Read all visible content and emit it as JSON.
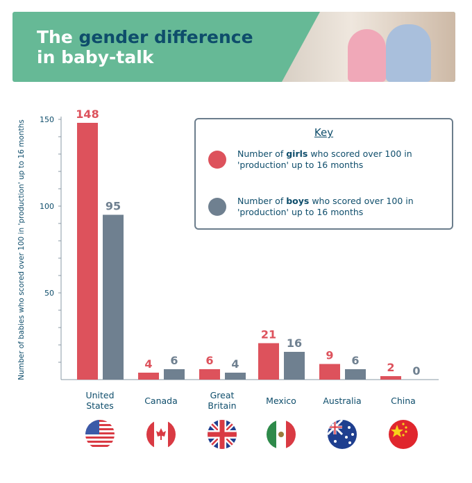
{
  "header": {
    "title_part1": "The ",
    "title_highlight": "gender difference",
    "title_line2": "in baby-talk"
  },
  "colors": {
    "girls": "#dd525c",
    "boys": "#6f8090",
    "banner": "#66b996",
    "navy": "#0e4d6b"
  },
  "key": {
    "title": "Key",
    "girls_pre": "Number of ",
    "girls_bold": "girls",
    "girls_post": " who scored over 100 in 'production' up to 16 months",
    "boys_pre": "Number of ",
    "boys_bold": "boys",
    "boys_post": " who scored over 100 in 'production' up to 16 months"
  },
  "chart_data": {
    "type": "bar",
    "title": "The gender difference in baby-talk",
    "ylabel": "Number of babies who scored over 100 in 'production' up to 16 months",
    "xlabel": "",
    "ylim": [
      0,
      150
    ],
    "yticks": [
      50,
      100,
      150
    ],
    "categories": [
      "United States",
      "Canada",
      "Great Britain",
      "Mexico",
      "Australia",
      "China"
    ],
    "category_lines": [
      [
        "United",
        "States"
      ],
      [
        "Canada"
      ],
      [
        "Great",
        "Britain"
      ],
      [
        "Mexico"
      ],
      [
        "Australia"
      ],
      [
        "China"
      ]
    ],
    "flags": [
      "us-flag-icon",
      "canada-flag-icon",
      "uk-flag-icon",
      "mexico-flag-icon",
      "australia-flag-icon",
      "china-flag-icon"
    ],
    "series": [
      {
        "name": "Girls",
        "values": [
          148,
          4,
          6,
          21,
          9,
          2
        ]
      },
      {
        "name": "Boys",
        "values": [
          95,
          6,
          4,
          16,
          6,
          0
        ]
      }
    ],
    "legend": "top-right"
  }
}
